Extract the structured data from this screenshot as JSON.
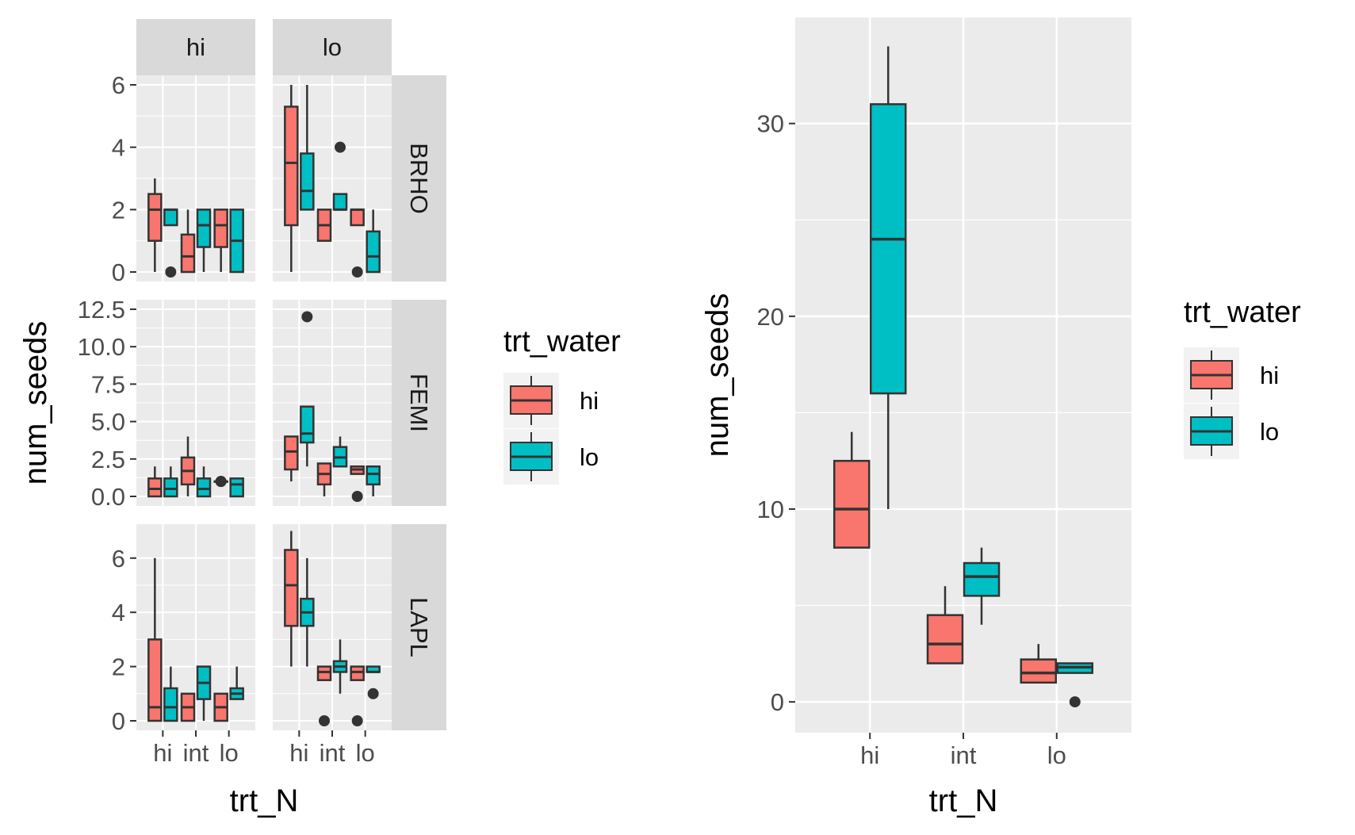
{
  "chart_data": [
    {
      "type": "boxplot",
      "facet_cols": [
        "hi",
        "lo"
      ],
      "facet_rows": [
        "BRHO",
        "FEMI",
        "LAPL"
      ],
      "categories": [
        "hi",
        "int",
        "lo"
      ],
      "xlabel": "trt_N",
      "ylabel": "num_seeds",
      "fill_by": "trt_water",
      "grid": true,
      "legend": {
        "title": "trt_water",
        "position": "right",
        "entries": [
          {
            "name": "hi",
            "color": "#F8766D"
          },
          {
            "name": "lo",
            "color": "#00BFC4"
          }
        ]
      },
      "panels": [
        {
          "col": "hi",
          "row": "BRHO",
          "ylim": [
            0,
            6
          ],
          "yticks": [
            0,
            2,
            4,
            6
          ],
          "ytick_labels": [
            "0",
            "2",
            "4",
            "6"
          ],
          "boxes": [
            {
              "x": "hi",
              "fill": "hi",
              "min": 0,
              "q1": 1,
              "median": 2,
              "q3": 2.5,
              "max": 3,
              "outliers": []
            },
            {
              "x": "hi",
              "fill": "lo",
              "min": 1.5,
              "q1": 1.5,
              "median": 2,
              "q3": 2,
              "max": 2,
              "outliers": [
                0
              ]
            },
            {
              "x": "int",
              "fill": "hi",
              "min": 0,
              "q1": 0,
              "median": 0.5,
              "q3": 1.2,
              "max": 2,
              "outliers": []
            },
            {
              "x": "int",
              "fill": "lo",
              "min": 0,
              "q1": 0.8,
              "median": 1.5,
              "q3": 2,
              "max": 2,
              "outliers": []
            },
            {
              "x": "lo",
              "fill": "hi",
              "min": 0,
              "q1": 0.8,
              "median": 1.5,
              "q3": 2,
              "max": 2,
              "outliers": []
            },
            {
              "x": "lo",
              "fill": "lo",
              "min": 0,
              "q1": 0,
              "median": 1,
              "q3": 2,
              "max": 2,
              "outliers": []
            }
          ]
        },
        {
          "col": "lo",
          "row": "BRHO",
          "ylim": [
            0,
            6
          ],
          "yticks": [
            0,
            2,
            4,
            6
          ],
          "ytick_labels": [
            "0",
            "2",
            "4",
            "6"
          ],
          "boxes": [
            {
              "x": "hi",
              "fill": "hi",
              "min": 0,
              "q1": 1.5,
              "median": 3.5,
              "q3": 5.3,
              "max": 6,
              "outliers": []
            },
            {
              "x": "hi",
              "fill": "lo",
              "min": 2,
              "q1": 2,
              "median": 2.6,
              "q3": 3.8,
              "max": 6,
              "outliers": []
            },
            {
              "x": "int",
              "fill": "hi",
              "min": 1,
              "q1": 1,
              "median": 1.5,
              "q3": 2,
              "max": 2,
              "outliers": []
            },
            {
              "x": "int",
              "fill": "lo",
              "min": 2,
              "q1": 2,
              "median": 2,
              "q3": 2.5,
              "max": 2.5,
              "outliers": [
                4
              ]
            },
            {
              "x": "lo",
              "fill": "hi",
              "min": 1.5,
              "q1": 1.5,
              "median": 2,
              "q3": 2,
              "max": 2,
              "outliers": [
                0
              ]
            },
            {
              "x": "lo",
              "fill": "lo",
              "min": 0,
              "q1": 0,
              "median": 0.5,
              "q3": 1.3,
              "max": 2,
              "outliers": []
            }
          ]
        },
        {
          "col": "hi",
          "row": "FEMI",
          "ylim": [
            0,
            12.5
          ],
          "yticks": [
            0,
            2.5,
            5,
            7.5,
            10,
            12.5
          ],
          "ytick_labels": [
            "0.0",
            "2.5",
            "5.0",
            "7.5",
            "10.0",
            "12.5"
          ],
          "boxes": [
            {
              "x": "hi",
              "fill": "hi",
              "min": 0,
              "q1": 0,
              "median": 0.5,
              "q3": 1.2,
              "max": 2,
              "outliers": []
            },
            {
              "x": "hi",
              "fill": "lo",
              "min": 0,
              "q1": 0,
              "median": 0.5,
              "q3": 1.2,
              "max": 2,
              "outliers": []
            },
            {
              "x": "int",
              "fill": "hi",
              "min": 0,
              "q1": 0.8,
              "median": 1.7,
              "q3": 2.6,
              "max": 4,
              "outliers": []
            },
            {
              "x": "int",
              "fill": "lo",
              "min": 0,
              "q1": 0,
              "median": 0.5,
              "q3": 1.2,
              "max": 2,
              "outliers": []
            },
            {
              "x": "lo",
              "fill": "hi",
              "min": 1,
              "q1": 1,
              "median": 1,
              "q3": 1,
              "max": 1,
              "outliers": [
                1,
                1
              ]
            },
            {
              "x": "lo",
              "fill": "lo",
              "min": 0,
              "q1": 0,
              "median": 0.8,
              "q3": 1.2,
              "max": 1.2,
              "outliers": []
            }
          ]
        },
        {
          "col": "lo",
          "row": "FEMI",
          "ylim": [
            0,
            12.5
          ],
          "yticks": [
            0,
            2.5,
            5,
            7.5,
            10,
            12.5
          ],
          "ytick_labels": [
            "0.0",
            "2.5",
            "5.0",
            "7.5",
            "10.0",
            "12.5"
          ],
          "boxes": [
            {
              "x": "hi",
              "fill": "hi",
              "min": 1,
              "q1": 1.8,
              "median": 3,
              "q3": 4,
              "max": 4,
              "outliers": []
            },
            {
              "x": "hi",
              "fill": "lo",
              "min": 2,
              "q1": 3.6,
              "median": 4.2,
              "q3": 6,
              "max": 6,
              "outliers": [
                12
              ]
            },
            {
              "x": "int",
              "fill": "hi",
              "min": 0,
              "q1": 0.8,
              "median": 1.5,
              "q3": 2.2,
              "max": 2.2,
              "outliers": []
            },
            {
              "x": "int",
              "fill": "lo",
              "min": 2,
              "q1": 2,
              "median": 2.6,
              "q3": 3.3,
              "max": 4,
              "outliers": []
            },
            {
              "x": "lo",
              "fill": "hi",
              "min": 1.5,
              "q1": 1.5,
              "median": 1.8,
              "q3": 2,
              "max": 2,
              "outliers": [
                0
              ]
            },
            {
              "x": "lo",
              "fill": "lo",
              "min": 0,
              "q1": 0.8,
              "median": 1.5,
              "q3": 2,
              "max": 2,
              "outliers": []
            }
          ]
        },
        {
          "col": "hi",
          "row": "LAPL",
          "ylim": [
            0,
            7
          ],
          "yticks": [
            0,
            2,
            4,
            6
          ],
          "ytick_labels": [
            "0",
            "2",
            "4",
            "6"
          ],
          "boxes": [
            {
              "x": "hi",
              "fill": "hi",
              "min": 0,
              "q1": 0,
              "median": 0.5,
              "q3": 3,
              "max": 6,
              "outliers": []
            },
            {
              "x": "hi",
              "fill": "lo",
              "min": 0,
              "q1": 0,
              "median": 0.5,
              "q3": 1.2,
              "max": 2,
              "outliers": []
            },
            {
              "x": "int",
              "fill": "hi",
              "min": 0,
              "q1": 0,
              "median": 0.5,
              "q3": 1,
              "max": 1,
              "outliers": []
            },
            {
              "x": "int",
              "fill": "lo",
              "min": 0,
              "q1": 0.8,
              "median": 1.4,
              "q3": 2,
              "max": 2,
              "outliers": []
            },
            {
              "x": "lo",
              "fill": "hi",
              "min": 0,
              "q1": 0,
              "median": 0.5,
              "q3": 1,
              "max": 1,
              "outliers": []
            },
            {
              "x": "lo",
              "fill": "lo",
              "min": 0.8,
              "q1": 0.8,
              "median": 1,
              "q3": 1.2,
              "max": 2,
              "outliers": []
            }
          ]
        },
        {
          "col": "lo",
          "row": "LAPL",
          "ylim": [
            0,
            7
          ],
          "yticks": [
            0,
            2,
            4,
            6
          ],
          "ytick_labels": [
            "0",
            "2",
            "4",
            "6"
          ],
          "boxes": [
            {
              "x": "hi",
              "fill": "hi",
              "min": 2,
              "q1": 3.5,
              "median": 5,
              "q3": 6.3,
              "max": 7,
              "outliers": []
            },
            {
              "x": "hi",
              "fill": "lo",
              "min": 2,
              "q1": 3.5,
              "median": 4,
              "q3": 4.5,
              "max": 6,
              "outliers": []
            },
            {
              "x": "int",
              "fill": "hi",
              "min": 1.5,
              "q1": 1.5,
              "median": 1.8,
              "q3": 2,
              "max": 2,
              "outliers": [
                0
              ]
            },
            {
              "x": "int",
              "fill": "lo",
              "min": 1,
              "q1": 1.8,
              "median": 2,
              "q3": 2.2,
              "max": 3,
              "outliers": []
            },
            {
              "x": "lo",
              "fill": "hi",
              "min": 1.5,
              "q1": 1.5,
              "median": 1.8,
              "q3": 2,
              "max": 2,
              "outliers": [
                0
              ]
            },
            {
              "x": "lo",
              "fill": "lo",
              "min": 1.8,
              "q1": 1.8,
              "median": 1.8,
              "q3": 2,
              "max": 2,
              "outliers": [
                1
              ]
            }
          ]
        }
      ]
    },
    {
      "type": "boxplot",
      "categories": [
        "hi",
        "int",
        "lo"
      ],
      "xlabel": "trt_N",
      "ylabel": "num_seeds",
      "fill_by": "trt_water",
      "grid": true,
      "ylim": [
        -1.6,
        35.5
      ],
      "yticks": [
        0,
        10,
        20,
        30
      ],
      "ytick_labels": [
        "0",
        "10",
        "20",
        "30"
      ],
      "legend": {
        "title": "trt_water",
        "position": "right",
        "entries": [
          {
            "name": "hi",
            "color": "#F8766D"
          },
          {
            "name": "lo",
            "color": "#00BFC4"
          }
        ]
      },
      "boxes": [
        {
          "x": "hi",
          "fill": "hi",
          "min": 8,
          "q1": 8,
          "median": 10,
          "q3": 12.5,
          "max": 14,
          "outliers": []
        },
        {
          "x": "hi",
          "fill": "lo",
          "min": 10,
          "q1": 16,
          "median": 24,
          "q3": 31,
          "max": 34,
          "outliers": []
        },
        {
          "x": "int",
          "fill": "hi",
          "min": 2,
          "q1": 2,
          "median": 3,
          "q3": 4.5,
          "max": 6,
          "outliers": []
        },
        {
          "x": "int",
          "fill": "lo",
          "min": 4,
          "q1": 5.5,
          "median": 6.5,
          "q3": 7.2,
          "max": 8,
          "outliers": []
        },
        {
          "x": "lo",
          "fill": "hi",
          "min": 1,
          "q1": 1,
          "median": 1.5,
          "q3": 2.2,
          "max": 3,
          "outliers": []
        },
        {
          "x": "lo",
          "fill": "lo",
          "min": 1.5,
          "q1": 1.5,
          "median": 1.8,
          "q3": 2,
          "max": 2,
          "outliers": [
            0
          ]
        }
      ]
    }
  ]
}
